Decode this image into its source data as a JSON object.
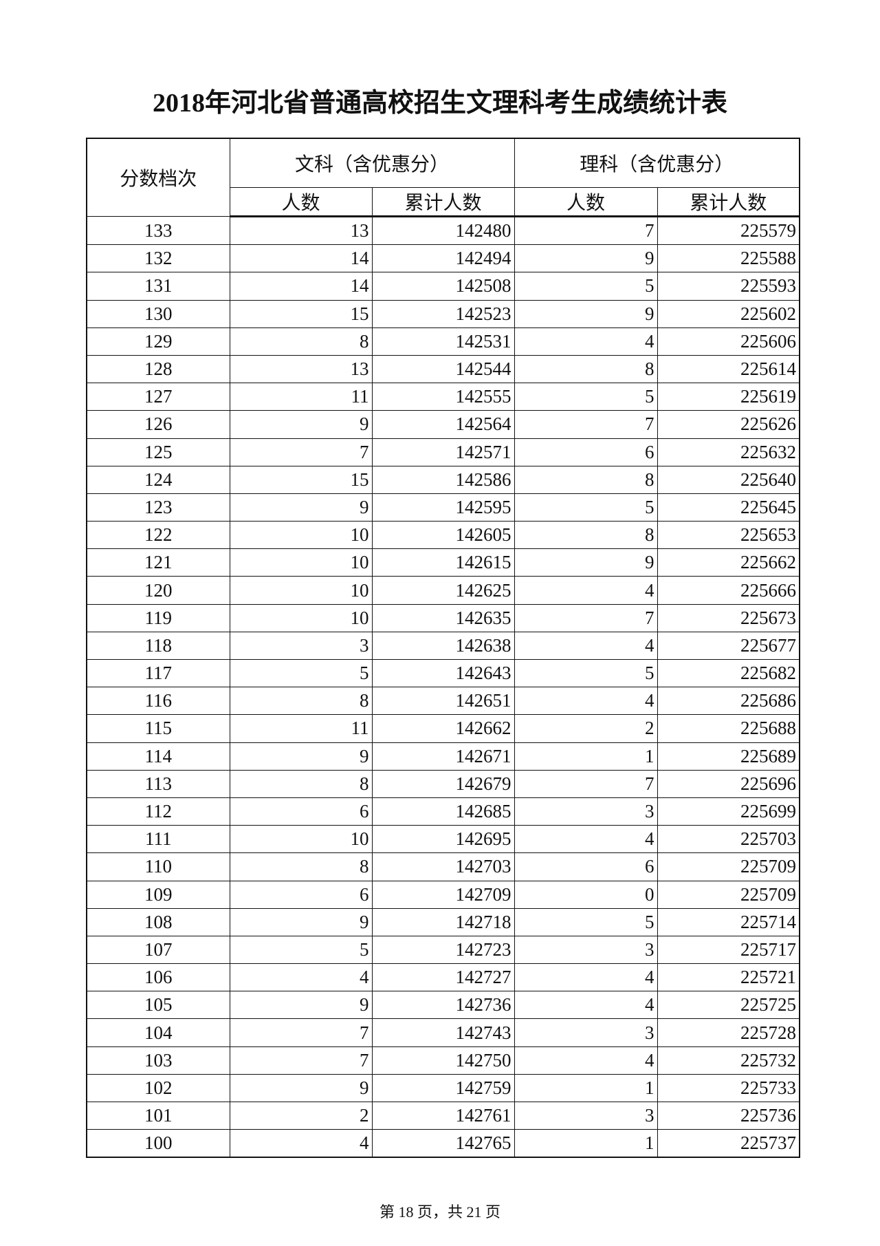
{
  "title": "2018年河北省普通高校招生文理科考生成绩统计表",
  "headers": {
    "score": "分数档次",
    "arts": "文科（含优惠分）",
    "science": "理科（含优惠分）",
    "count": "人数",
    "cumulative": "累计人数"
  },
  "rows": [
    [
      "133",
      "13",
      "142480",
      "7",
      "225579"
    ],
    [
      "132",
      "14",
      "142494",
      "9",
      "225588"
    ],
    [
      "131",
      "14",
      "142508",
      "5",
      "225593"
    ],
    [
      "130",
      "15",
      "142523",
      "9",
      "225602"
    ],
    [
      "129",
      "8",
      "142531",
      "4",
      "225606"
    ],
    [
      "128",
      "13",
      "142544",
      "8",
      "225614"
    ],
    [
      "127",
      "11",
      "142555",
      "5",
      "225619"
    ],
    [
      "126",
      "9",
      "142564",
      "7",
      "225626"
    ],
    [
      "125",
      "7",
      "142571",
      "6",
      "225632"
    ],
    [
      "124",
      "15",
      "142586",
      "8",
      "225640"
    ],
    [
      "123",
      "9",
      "142595",
      "5",
      "225645"
    ],
    [
      "122",
      "10",
      "142605",
      "8",
      "225653"
    ],
    [
      "121",
      "10",
      "142615",
      "9",
      "225662"
    ],
    [
      "120",
      "10",
      "142625",
      "4",
      "225666"
    ],
    [
      "119",
      "10",
      "142635",
      "7",
      "225673"
    ],
    [
      "118",
      "3",
      "142638",
      "4",
      "225677"
    ],
    [
      "117",
      "5",
      "142643",
      "5",
      "225682"
    ],
    [
      "116",
      "8",
      "142651",
      "4",
      "225686"
    ],
    [
      "115",
      "11",
      "142662",
      "2",
      "225688"
    ],
    [
      "114",
      "9",
      "142671",
      "1",
      "225689"
    ],
    [
      "113",
      "8",
      "142679",
      "7",
      "225696"
    ],
    [
      "112",
      "6",
      "142685",
      "3",
      "225699"
    ],
    [
      "111",
      "10",
      "142695",
      "4",
      "225703"
    ],
    [
      "110",
      "8",
      "142703",
      "6",
      "225709"
    ],
    [
      "109",
      "6",
      "142709",
      "0",
      "225709"
    ],
    [
      "108",
      "9",
      "142718",
      "5",
      "225714"
    ],
    [
      "107",
      "5",
      "142723",
      "3",
      "225717"
    ],
    [
      "106",
      "4",
      "142727",
      "4",
      "225721"
    ],
    [
      "105",
      "9",
      "142736",
      "4",
      "225725"
    ],
    [
      "104",
      "7",
      "142743",
      "3",
      "225728"
    ],
    [
      "103",
      "7",
      "142750",
      "4",
      "225732"
    ],
    [
      "102",
      "9",
      "142759",
      "1",
      "225733"
    ],
    [
      "101",
      "2",
      "142761",
      "3",
      "225736"
    ],
    [
      "100",
      "4",
      "142765",
      "1",
      "225737"
    ]
  ],
  "footer": "第 18 页，共 21 页"
}
